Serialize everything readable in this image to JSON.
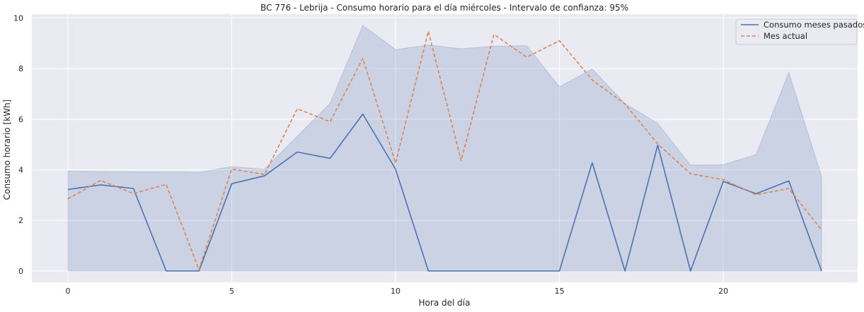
{
  "chart_data": {
    "type": "line",
    "title": "BC 776 - Lebrija - Consumo horario para el día miércoles - Intervalo de confianza: 95%",
    "xlabel": "Hora del día",
    "ylabel": "Consumo horario [kWh]",
    "xlim": [
      -1.1,
      24.1
    ],
    "ylim": [
      -0.45,
      10.15
    ],
    "xticks": [
      0,
      5,
      10,
      15,
      20
    ],
    "yticks": [
      0,
      2,
      4,
      6,
      8,
      10
    ],
    "grid": true,
    "legend_position": "top-right",
    "x": [
      0,
      1,
      2,
      3,
      4,
      5,
      6,
      7,
      8,
      9,
      10,
      11,
      12,
      13,
      14,
      15,
      16,
      17,
      18,
      19,
      20,
      21,
      22,
      23
    ],
    "series": [
      {
        "name": "Consumo meses pasados",
        "color": "#4c72b0",
        "style": "solid",
        "values": [
          3.22,
          3.4,
          3.26,
          0.0,
          0.0,
          3.45,
          3.76,
          4.7,
          4.45,
          6.2,
          4.02,
          0.0,
          0.0,
          0.0,
          0.0,
          0.0,
          4.28,
          0.0,
          4.97,
          0.0,
          3.54,
          3.05,
          3.56,
          0.0
        ]
      },
      {
        "name": "Mes actual",
        "color": "#dd8452",
        "style": "dashed",
        "values": [
          2.85,
          3.58,
          3.06,
          3.42,
          0.05,
          4.03,
          3.81,
          6.41,
          5.9,
          8.4,
          4.27,
          9.47,
          4.36,
          9.35,
          8.45,
          9.1,
          7.55,
          6.6,
          5.02,
          3.84,
          3.61,
          3.01,
          3.26,
          1.62
        ]
      }
    ],
    "confidence_band": {
      "color": "#4c72b0",
      "lower": [
        0,
        0,
        0,
        0,
        0,
        0,
        0,
        0,
        0,
        0,
        0,
        0,
        0,
        0,
        0,
        0,
        0,
        0,
        0,
        0,
        0,
        0,
        0,
        0
      ],
      "upper": [
        3.95,
        3.93,
        3.92,
        3.92,
        3.9,
        4.12,
        4.02,
        5.32,
        6.62,
        9.7,
        8.75,
        8.93,
        8.78,
        8.88,
        8.9,
        7.28,
        7.98,
        6.62,
        5.83,
        4.18,
        4.2,
        4.6,
        7.85,
        3.72
      ]
    }
  }
}
